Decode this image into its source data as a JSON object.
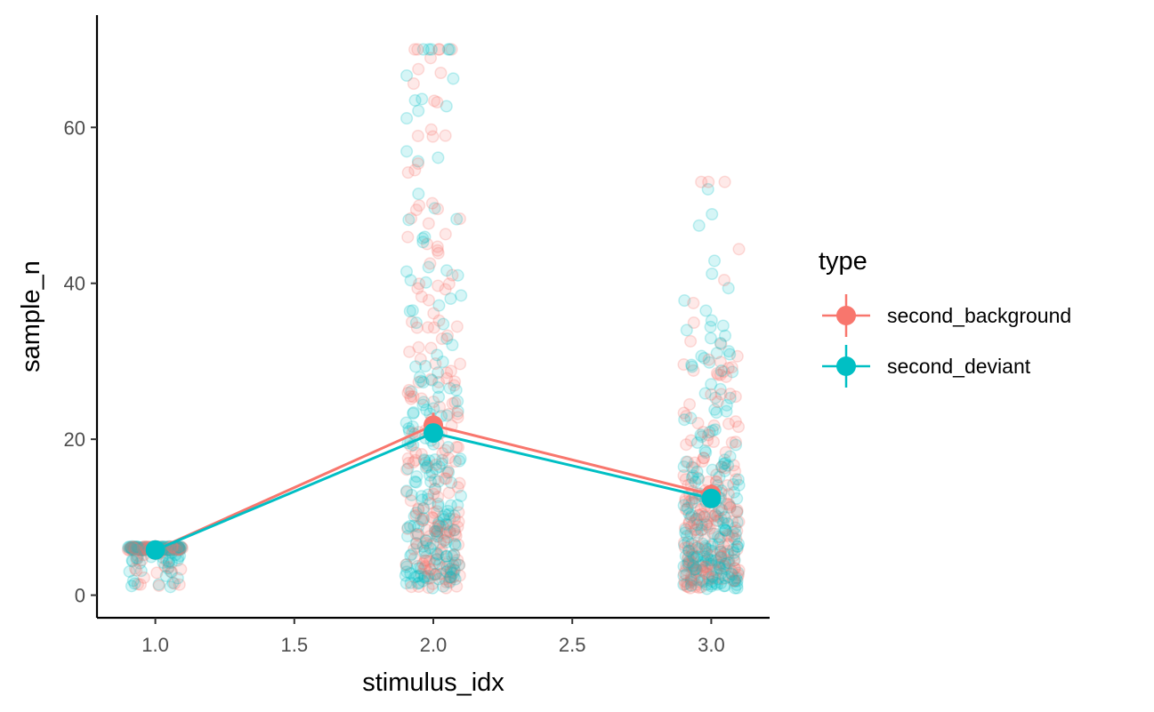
{
  "chart_data": {
    "type": "scatter",
    "title": "",
    "xlabel": "stimulus_idx",
    "ylabel": "sample_n",
    "xlim": [
      0.79,
      3.21
    ],
    "ylim": [
      -2.9,
      74.4
    ],
    "x_ticks": [
      1.0,
      1.5,
      2.0,
      2.5,
      3.0
    ],
    "x_tick_labels": [
      "1.0",
      "1.5",
      "2.0",
      "2.5",
      "3.0"
    ],
    "y_ticks": [
      0,
      20,
      40,
      60
    ],
    "y_tick_labels": [
      "0",
      "20",
      "40",
      "60"
    ],
    "grid": false,
    "legend": {
      "title": "type",
      "placement": "right"
    },
    "series": [
      {
        "name": "second_background",
        "color": "#F8766D",
        "summary": {
          "x": [
            1.0,
            2.0,
            3.0
          ],
          "mean": [
            5.8,
            21.8,
            12.9
          ],
          "error": [
            0.4,
            1.6,
            1.3
          ]
        }
      },
      {
        "name": "second_deviant",
        "color": "#00BFC4",
        "summary": {
          "x": [
            1.0,
            2.0,
            3.0
          ],
          "mean": [
            5.8,
            20.8,
            12.4
          ],
          "error": [
            0.4,
            1.2,
            1.1
          ]
        }
      }
    ],
    "raw_points_note_free": true,
    "jitter_width": 0.1
  }
}
